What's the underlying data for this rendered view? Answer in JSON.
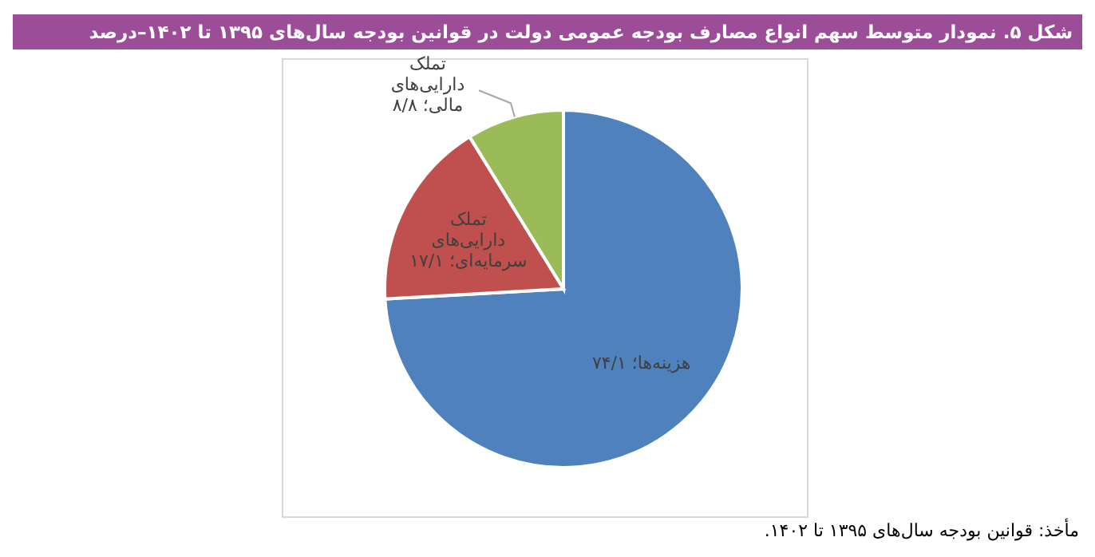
{
  "chart_data": {
    "type": "pie",
    "title": "شکل ۵. نمودار متوسط سهم انواع مصارف بودجه عمومی دولت در قوانین بودجه سال‌های ۱۳۹۵ تا ۱۴۰۲–درصد",
    "categories": [
      "هزینه‌ها",
      "تملک دارایی‌های سرمایه‌ای",
      "تملک دارایی‌های مالی"
    ],
    "values": [
      74.1,
      17.1,
      8.8
    ],
    "value_labels": [
      "؛ ۷۴/۱",
      "؛ ۱۷/۱",
      "؛ ۸/۸"
    ],
    "colors": [
      "#4f81bd",
      "#c0504d",
      "#9bbb59"
    ],
    "annotations": [
      "مأخذ: قوانین بودجه سال‌های ۱۳۹۵ تا ۱۴۰۲."
    ]
  }
}
